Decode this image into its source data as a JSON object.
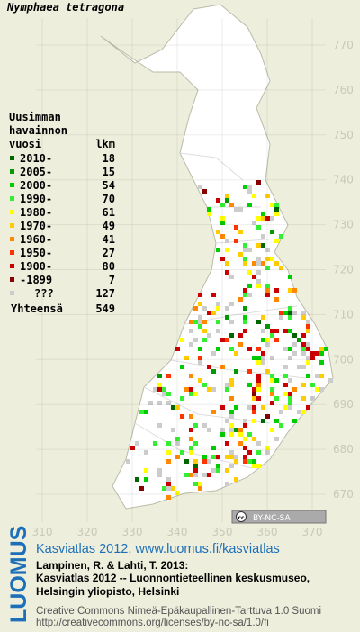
{
  "title": "Nymphaea tetragona",
  "legend": {
    "heading": [
      "Uusimman",
      "havainnon",
      "vuosi"
    ],
    "count_heading": "lkm",
    "rows": [
      {
        "label": "2010-",
        "count": 18,
        "color": "#006600"
      },
      {
        "label": "2005-",
        "count": 15,
        "color": "#009900"
      },
      {
        "label": "2000-",
        "count": 54,
        "color": "#00cc00"
      },
      {
        "label": "1990-",
        "count": 70,
        "color": "#33ee33"
      },
      {
        "label": "1980-",
        "count": 61,
        "color": "#ffff00"
      },
      {
        "label": "1970-",
        "count": 49,
        "color": "#ffcc00"
      },
      {
        "label": "1960-",
        "count": 41,
        "color": "#ff8800"
      },
      {
        "label": "1950-",
        "count": 27,
        "color": "#ff3300"
      },
      {
        "label": "1900-",
        "count": 80,
        "color": "#cc0000"
      },
      {
        "label": "-1899",
        "count": 7,
        "color": "#880000"
      },
      {
        "label": "???",
        "count": 127,
        "color": "#cccccc"
      }
    ],
    "total_label": "Yhteensä",
    "total": 549
  },
  "grid": {
    "yticks": [
      770,
      760,
      750,
      740,
      730,
      720,
      710,
      700,
      690,
      680,
      670
    ],
    "xticks": [
      310,
      320,
      330,
      340,
      350,
      360,
      370
    ]
  },
  "badge": {
    "icon": "cc",
    "text": "BY-NC-SA"
  },
  "logo": "LUOMUS",
  "credits": {
    "link": "Kasviatlas 2012, www.luomus.fi/kasviatlas",
    "citation": [
      "Lampinen, R. & Lahti, T. 2013:",
      "Kasviatlas 2012 -- Luonnontieteellinen keskusmuseo,",
      "Helsingin yliopisto, Helsinki"
    ],
    "license": [
      "Creative Commons Nimeä-Epäkaupallinen-Tarttuva 1.0 Suomi",
      "http://creativecommons.org/licenses/by-nc-sa/1.0/fi"
    ]
  }
}
